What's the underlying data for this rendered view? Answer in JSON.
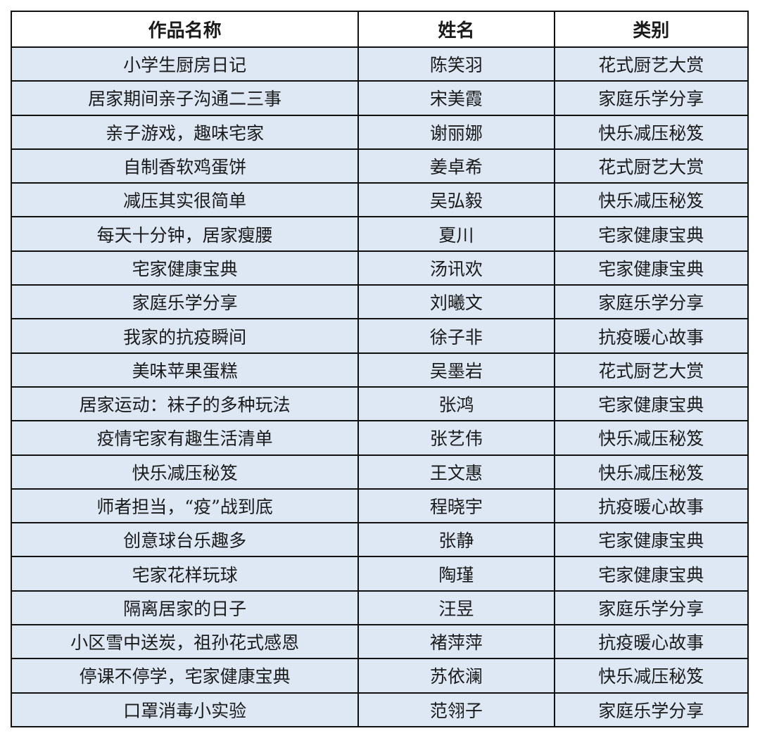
{
  "headers": [
    "作品名称",
    "姓名",
    "类别"
  ],
  "rows": [
    [
      "小学生厨房日记",
      "陈笑羽",
      "花式厨艺大赏"
    ],
    [
      "居家期间亲子沟通二三事",
      "宋美霞",
      "家庭乐学分享"
    ],
    [
      "亲子游戏，趣味宅家",
      "谢丽娜",
      "快乐减压秘笈"
    ],
    [
      "自制香软鸡蛋饼",
      "姜卓希",
      "花式厨艺大赏"
    ],
    [
      "减压其实很简单",
      "吴弘毅",
      "快乐减压秘笈"
    ],
    [
      "每天十分钟，居家瘦腰",
      "夏川",
      "宅家健康宝典"
    ],
    [
      "宅家健康宝典",
      "汤讯欢",
      "宅家健康宝典"
    ],
    [
      "家庭乐学分享",
      "刘曦文",
      "家庭乐学分享"
    ],
    [
      "我家的抗疫瞬间",
      "徐子非",
      "抗疫暖心故事"
    ],
    [
      "美味苹果蛋糕",
      "吴墨岩",
      "花式厨艺大赏"
    ],
    [
      "居家运动：袜子的多种玩法",
      "张鸿",
      "宅家健康宝典"
    ],
    [
      "疫情宅家有趣生活清单",
      "张艺伟",
      "快乐减压秘笈"
    ],
    [
      "快乐减压秘笈",
      "王文惠",
      "快乐减压秘笈"
    ],
    [
      "师者担当，“疫”战到底",
      "程晓宇",
      "抗疫暖心故事"
    ],
    [
      "创意球台乐趣多",
      "张静",
      "宅家健康宝典"
    ],
    [
      "宅家花样玩球",
      "陶瑾",
      "宅家健康宝典"
    ],
    [
      "隔离居家的日子",
      "汪昱",
      "家庭乐学分享"
    ],
    [
      "小区雪中送炭，祖孙花式感恩",
      "褚萍萍",
      "抗疫暖心故事"
    ],
    [
      "停课不停学，宅家健康宝典",
      "苏依澜",
      "快乐减压秘笈"
    ],
    [
      "口罩消毒小实验",
      "范翎子",
      "家庭乐学分享"
    ]
  ],
  "colors": {
    "row_bg": "#dde8f4",
    "header_bg": "#ffffff",
    "border": "#111111"
  }
}
